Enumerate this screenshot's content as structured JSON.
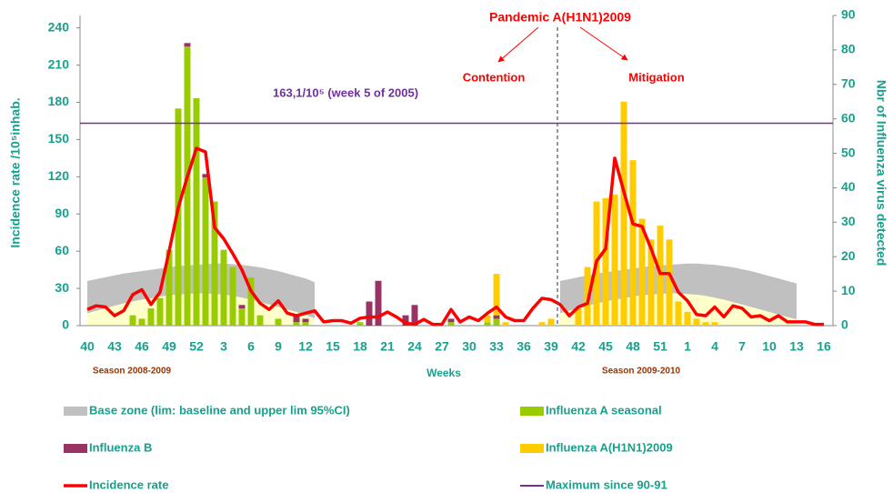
{
  "chart_data": {
    "type": "bar",
    "annotations": {
      "pandemic": "Pandemic A(H1N1)2009",
      "contention": "Contention",
      "mitigation": "Mitigation",
      "maximum_note": "163,1/10⁵ (week 5 of 2005)",
      "season_1": "Season 2008-2009",
      "season_2": "Season 2009-2010"
    },
    "xlabel": "Weeks",
    "ylabel": "Incidence rate /10⁵inhab.",
    "y2label": "Nbr of Influenza virus detected",
    "categories": [
      40,
      null,
      null,
      43,
      null,
      null,
      46,
      null,
      null,
      49,
      null,
      null,
      52,
      null,
      null,
      3,
      null,
      null,
      6,
      null,
      null,
      9,
      null,
      null,
      12,
      null,
      null,
      15,
      null,
      null,
      18,
      null,
      null,
      21,
      null,
      null,
      24,
      null,
      null,
      27,
      null,
      null,
      30,
      null,
      null,
      33,
      null,
      null,
      36,
      null,
      null,
      39,
      null,
      null,
      42,
      null,
      null,
      45,
      null,
      null,
      48,
      null,
      null,
      51,
      null,
      null,
      1,
      null,
      null,
      4,
      null,
      null,
      7,
      null,
      null,
      10,
      null,
      null,
      13,
      null,
      null,
      16
    ],
    "ylim": [
      0,
      250
    ],
    "yticks": [
      0,
      30,
      60,
      90,
      120,
      150,
      180,
      210,
      240
    ],
    "y2lim": [
      0,
      90
    ],
    "y2ticks": [
      0,
      10,
      20,
      30,
      40,
      50,
      60,
      70,
      80,
      90
    ],
    "base_zone": {
      "name": "Base zone (lim: baseline and upper lim 95%CI)",
      "color": "#c0c0c0",
      "low_color": "#ffffcc",
      "upper": [
        36,
        37.5,
        39,
        40.5,
        42,
        43,
        44,
        45,
        46,
        47,
        48,
        48.5,
        49,
        49.5,
        50,
        50,
        49.5,
        49,
        48,
        47,
        45.5,
        44,
        42,
        40,
        38,
        35,
        null,
        null,
        null,
        null,
        null,
        null,
        null,
        null,
        null,
        null,
        null,
        null,
        null,
        null,
        null,
        null,
        null,
        null,
        null,
        null,
        null,
        null,
        null,
        null,
        null,
        null,
        36,
        37.5,
        39,
        40.5,
        42,
        43,
        44,
        45,
        46,
        47,
        48,
        48.5,
        49,
        49.5,
        50,
        50,
        49.5,
        49,
        48,
        47,
        45.5,
        44,
        42,
        40,
        38,
        36,
        34,
        null,
        null,
        null
      ],
      "lower": [
        10,
        12,
        14,
        16,
        18,
        19.5,
        21,
        22,
        23.5,
        24.5,
        25,
        25.5,
        26,
        26,
        25.5,
        25,
        24,
        22.5,
        21,
        19,
        17,
        15,
        13,
        11,
        8.5,
        6,
        null,
        null,
        null,
        null,
        null,
        null,
        null,
        null,
        null,
        null,
        null,
        null,
        null,
        null,
        null,
        null,
        null,
        null,
        null,
        null,
        null,
        null,
        null,
        null,
        null,
        null,
        10,
        12,
        14,
        16,
        18,
        19.5,
        21,
        22,
        23.5,
        24.5,
        25,
        25.5,
        26,
        26,
        25.5,
        25,
        24,
        22.5,
        21,
        19,
        17,
        15,
        13,
        11,
        9,
        7,
        5,
        null,
        null,
        null
      ]
    },
    "series": [
      {
        "name": "Influenza A seasonal",
        "type": "bar",
        "axis": "y2",
        "color": "#99cc00",
        "values": [
          0,
          0,
          0,
          0,
          0,
          3,
          2,
          5,
          8,
          22,
          63,
          81,
          66,
          43,
          36,
          22,
          17,
          5,
          14,
          3,
          0,
          2,
          0,
          1,
          1,
          0,
          0,
          0,
          0,
          0,
          1,
          0,
          0,
          0,
          0,
          0,
          0,
          0,
          0,
          0,
          1,
          0,
          0,
          0,
          1,
          2,
          0,
          0,
          0,
          0,
          0,
          0,
          0,
          0,
          0,
          0,
          0,
          0,
          0,
          0,
          0,
          0,
          0,
          0,
          0,
          0,
          0,
          0,
          0,
          0,
          0,
          0,
          0,
          0,
          0,
          0,
          0,
          0,
          0,
          0,
          0,
          0
        ]
      },
      {
        "name": "Influenza B",
        "type": "bar",
        "axis": "y2",
        "color": "#993366",
        "values": [
          0,
          0,
          0,
          0,
          0,
          0,
          0,
          0,
          0,
          0,
          0,
          1,
          0,
          1,
          0,
          0,
          0,
          1,
          0,
          0,
          0,
          0,
          0,
          2,
          1,
          0,
          0,
          0,
          0,
          0,
          0,
          7,
          13,
          0,
          0,
          3,
          6,
          0,
          0,
          0,
          1,
          0,
          0,
          0,
          0,
          1,
          0,
          0,
          0,
          0,
          0,
          0,
          0,
          0,
          0,
          0,
          0,
          0,
          0,
          0,
          0,
          0,
          0,
          0,
          0,
          0,
          0,
          0,
          0,
          0,
          0,
          0,
          0,
          0,
          0,
          0,
          0,
          0,
          0,
          0,
          0,
          0
        ]
      },
      {
        "name": "Influenza A(H1N1)2009",
        "type": "bar",
        "axis": "y2",
        "color": "#ffcc00",
        "values": [
          0,
          0,
          0,
          0,
          0,
          0,
          0,
          0,
          0,
          0,
          0,
          0,
          0,
          0,
          0,
          0,
          0,
          0,
          0,
          0,
          0,
          0,
          0,
          0,
          0,
          0,
          0,
          0,
          0,
          0,
          0,
          0,
          0,
          0,
          0,
          0,
          0,
          0,
          0,
          0,
          0,
          0,
          0,
          0,
          2,
          12,
          1,
          0,
          0,
          0,
          1,
          2,
          0,
          0,
          5,
          17,
          36,
          37,
          38,
          65,
          48,
          31,
          25,
          29,
          25,
          7,
          4,
          2,
          1,
          1,
          0,
          0,
          0,
          0,
          0,
          0,
          0,
          0,
          0,
          0,
          0,
          0
        ]
      },
      {
        "name": "Incidence rate",
        "type": "line",
        "color": "#ff0000",
        "values": [
          13,
          16,
          15,
          8,
          12,
          25,
          29,
          17,
          27,
          60,
          95,
          120,
          143,
          140,
          79,
          70,
          58,
          45,
          28,
          18,
          13,
          20,
          10,
          8,
          10,
          12,
          3,
          4,
          4,
          2,
          6,
          7,
          7,
          11,
          7,
          2,
          1,
          5,
          1,
          1,
          13,
          3,
          7,
          4,
          10,
          15,
          7,
          4,
          4,
          14,
          22,
          21,
          17,
          8,
          15,
          18,
          52,
          62,
          135,
          108,
          82,
          80,
          62,
          42,
          42,
          27,
          20,
          9,
          8,
          15,
          7,
          16,
          14,
          7,
          8,
          4,
          8,
          3,
          3,
          3,
          1,
          1
        ]
      }
    ],
    "maximum": {
      "name": "Maximum since 90-91",
      "color": "#7030a0",
      "value": 163.1
    }
  }
}
